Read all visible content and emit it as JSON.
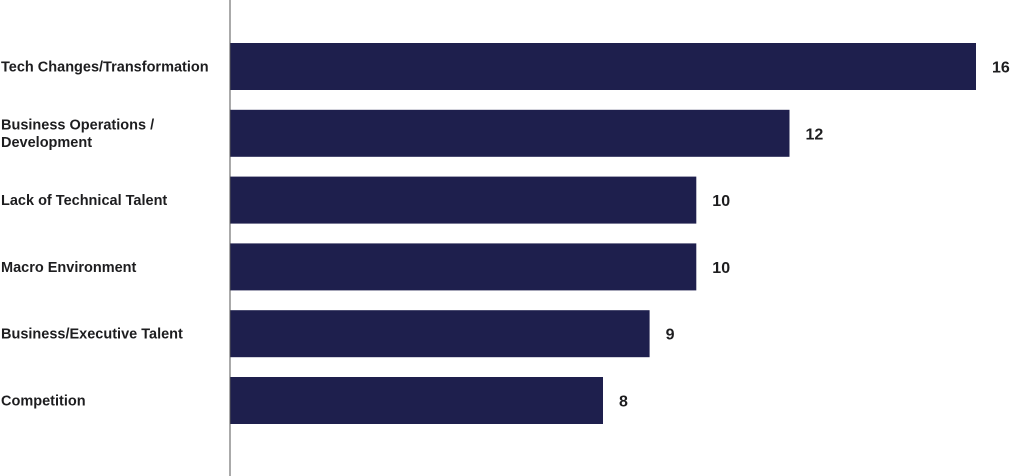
{
  "chart_data": {
    "type": "bar",
    "orientation": "horizontal",
    "title": "",
    "xlabel": "",
    "ylabel": "",
    "categories": [
      [
        "Tech Changes/Transformation"
      ],
      [
        "Business Operations /",
        "Development"
      ],
      [
        "Lack of Technical Talent"
      ],
      [
        "Macro Environment"
      ],
      [
        "Business/Executive Talent"
      ],
      [
        "Competition"
      ]
    ],
    "values": [
      16,
      12,
      10,
      10,
      9,
      8
    ],
    "value_labels": [
      "16",
      "12",
      "10",
      "10",
      "9",
      "8"
    ],
    "xlim": [
      0,
      16
    ],
    "grid": false,
    "legend": "none",
    "colors": {
      "bar": "#1e1f4d",
      "axis": "#555555",
      "text": "#1d1d1f"
    }
  }
}
